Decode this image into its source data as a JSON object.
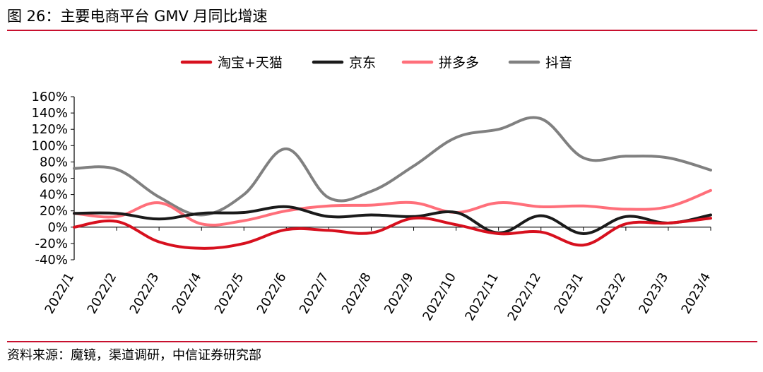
{
  "figure": {
    "title": "图 26：主要电商平台 GMV 月同比增速",
    "source": "资料来源：魔镜，渠道调研，中信证券研究部"
  },
  "chart_data": {
    "type": "line",
    "categories": [
      "2022/1",
      "2022/2",
      "2022/3",
      "2022/4",
      "2022/5",
      "2022/6",
      "2022/7",
      "2022/8",
      "2022/9",
      "2022/10",
      "2022/11",
      "2022/12",
      "2023/1",
      "2023/2",
      "2023/3",
      "2023/4"
    ],
    "ylim": [
      -40,
      160
    ],
    "yticks": [
      -40,
      -20,
      0,
      20,
      40,
      60,
      80,
      100,
      120,
      140,
      160
    ],
    "ytick_labels": [
      "-40%",
      "-20%",
      "0%",
      "20%",
      "40%",
      "60%",
      "80%",
      "100%",
      "120%",
      "140%",
      "160%"
    ],
    "grid": false,
    "legend_position": "top",
    "series": [
      {
        "name": "淘宝+天猫",
        "color": "#d7101e",
        "values": [
          0,
          7,
          -18,
          -26,
          -20,
          -3,
          -4,
          -7,
          11,
          3,
          -8,
          -6,
          -22,
          4,
          5,
          11
        ]
      },
      {
        "name": "京东",
        "color": "#1a1a1a",
        "values": [
          17,
          17,
          10,
          17,
          18,
          25,
          13,
          15,
          13,
          18,
          -7,
          14,
          -8,
          13,
          5,
          15
        ]
      },
      {
        "name": "拼多多",
        "color": "#ff6f7a",
        "values": [
          17,
          13,
          30,
          4,
          8,
          20,
          26,
          27,
          30,
          18,
          30,
          25,
          26,
          22,
          25,
          45
        ]
      },
      {
        "name": "抖音",
        "color": "#808080",
        "values": [
          72,
          71,
          37,
          15,
          40,
          96,
          36,
          44,
          75,
          110,
          120,
          133,
          85,
          87,
          85,
          70
        ]
      }
    ]
  }
}
